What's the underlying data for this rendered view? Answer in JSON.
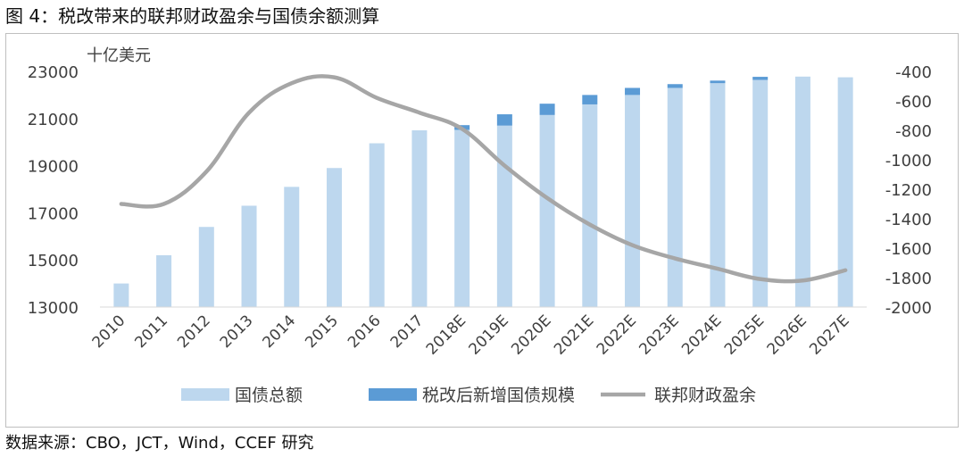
{
  "figure": {
    "title": "图 4：税改带来的联邦财政盈余与国债余额测算",
    "source": "数据来源：CBO，JCT，Wind，CCEF 研究"
  },
  "chart_data": {
    "type": "bar",
    "subtype": "stacked bar + line (dual axis)",
    "categories": [
      "2010",
      "2011",
      "2012",
      "2013",
      "2014",
      "2015",
      "2016",
      "2017",
      "2018E",
      "2019E",
      "2020E",
      "2021E",
      "2022E",
      "2023E",
      "2024E",
      "2025E",
      "2026E",
      "2027E"
    ],
    "y_left": {
      "label": "十亿美元",
      "lim": [
        13000,
        23000
      ],
      "ticks": [
        13000,
        15000,
        17000,
        19000,
        21000,
        23000
      ]
    },
    "y_right": {
      "lim": [
        -2000,
        -400
      ],
      "ticks": [
        -2000,
        -1800,
        -1600,
        -1400,
        -1200,
        -1000,
        -800,
        -600,
        -400
      ]
    },
    "grid": false,
    "legend_position": "bottom",
    "series": [
      {
        "name": "国债总额",
        "type": "bar",
        "axis": "left",
        "color": "#bdd7ee",
        "values": [
          14000,
          15200,
          16400,
          17300,
          18100,
          18900,
          19950,
          20500,
          20520,
          20700,
          21150,
          21600,
          22000,
          22300,
          22500,
          22640,
          22780,
          22750
        ]
      },
      {
        "name": "税改后新增国债规模",
        "type": "bar",
        "axis": "left",
        "stacked": true,
        "color": "#5b9bd5",
        "values": [
          0,
          0,
          0,
          0,
          0,
          0,
          0,
          0,
          200,
          480,
          480,
          400,
          300,
          160,
          110,
          130,
          0,
          0
        ]
      },
      {
        "name": "联邦财政盈余",
        "type": "line",
        "axis": "right",
        "color": "#a6a6a6",
        "values": [
          -1300,
          -1300,
          -1080,
          -680,
          -480,
          -440,
          -580,
          -680,
          -790,
          -1040,
          -1260,
          -1440,
          -1580,
          -1670,
          -1740,
          -1810,
          -1820,
          -1750
        ]
      }
    ]
  }
}
